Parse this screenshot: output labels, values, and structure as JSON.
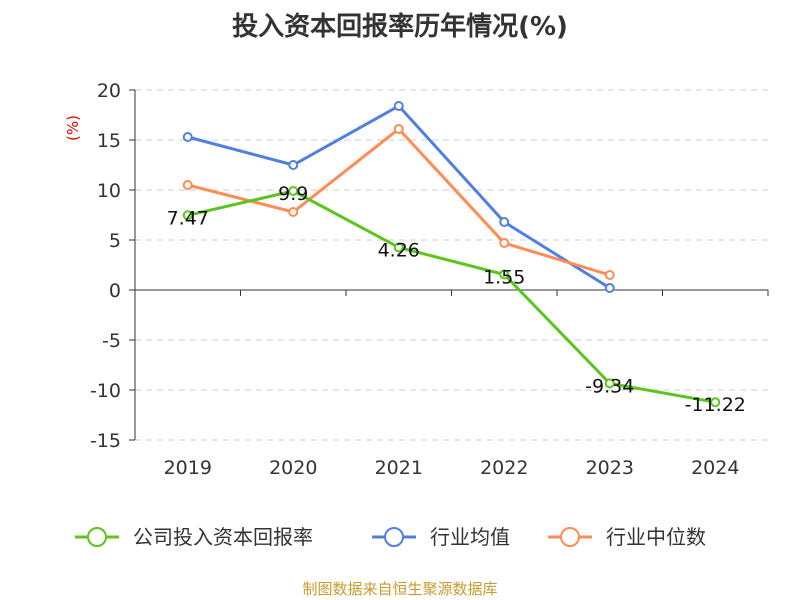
{
  "chart_data": {
    "type": "line",
    "title": "投入资本回报率历年情况(%)",
    "ylabel": "(%)",
    "xlabel": "",
    "ylim": [
      -15,
      20
    ],
    "yticks": [
      20,
      15,
      10,
      5,
      0,
      -5,
      -10,
      -15
    ],
    "grid": true,
    "legend_position": "bottom",
    "categories": [
      "2019",
      "2020",
      "2021",
      "2022",
      "2023",
      "2024"
    ],
    "series": [
      {
        "name": "公司投入资本回报率",
        "color": "#5cc41f",
        "values": [
          7.47,
          9.9,
          4.26,
          1.55,
          -9.34,
          -11.22
        ],
        "labels": [
          "7.47",
          "9.9",
          "4.26",
          "1.55",
          "-9.34",
          "-11.22"
        ]
      },
      {
        "name": "行业均值",
        "color": "#4f80e1",
        "values": [
          15.3,
          12.5,
          18.4,
          6.8,
          0.2,
          null
        ]
      },
      {
        "name": "行业中位数",
        "color": "#ff8b55",
        "values": [
          10.5,
          7.8,
          16.1,
          4.7,
          1.5,
          null
        ]
      }
    ]
  },
  "footer": "制图数据来自恒生聚源数据库"
}
